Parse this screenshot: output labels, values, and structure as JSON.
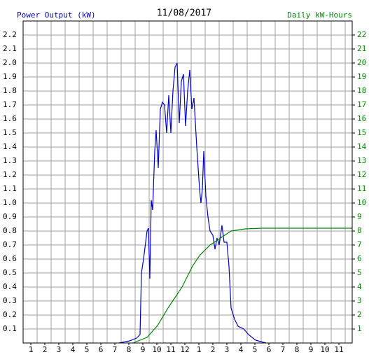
{
  "chart_data": {
    "type": "line",
    "title": "11/08/2017",
    "y_label": "Power Output (kW)",
    "y2_label": "Daily kW-Hours",
    "xlim": [
      0.45,
      23.95
    ],
    "xticks": [
      {
        "value": 1,
        "label": "1"
      },
      {
        "value": 2,
        "label": "2"
      },
      {
        "value": 3,
        "label": "3"
      },
      {
        "value": 4,
        "label": "4"
      },
      {
        "value": 5,
        "label": "5"
      },
      {
        "value": 6,
        "label": "6"
      },
      {
        "value": 7,
        "label": "7"
      },
      {
        "value": 8,
        "label": "8"
      },
      {
        "value": 9,
        "label": "9"
      },
      {
        "value": 10,
        "label": "10"
      },
      {
        "value": 11,
        "label": "11"
      },
      {
        "value": 12,
        "label": "12"
      },
      {
        "value": 13,
        "label": "1"
      },
      {
        "value": 14,
        "label": "2"
      },
      {
        "value": 15,
        "label": "3"
      },
      {
        "value": 16,
        "label": "4"
      },
      {
        "value": 17,
        "label": "5"
      },
      {
        "value": 18,
        "label": "6"
      },
      {
        "value": 19,
        "label": "7"
      },
      {
        "value": 20,
        "label": "8"
      },
      {
        "value": 21,
        "label": "9"
      },
      {
        "value": 22,
        "label": "10"
      },
      {
        "value": 23,
        "label": "11"
      }
    ],
    "ylim": [
      0,
      2.3
    ],
    "yticks": [
      0.1,
      0.2,
      0.3,
      0.4,
      0.5,
      0.6,
      0.7,
      0.8,
      0.9,
      {
        "value": 1,
        "label": "1.0"
      },
      1.1,
      1.2,
      1.3,
      1.4,
      1.5,
      1.6,
      1.7,
      1.8,
      1.9,
      {
        "value": 2,
        "label": "2.0"
      },
      2.1,
      2.2
    ],
    "y2lim": [
      0,
      23
    ],
    "y2ticks": [
      1,
      2,
      3,
      4,
      5,
      6,
      7,
      8,
      9,
      10,
      11,
      12,
      13,
      14,
      15,
      16,
      17,
      18,
      19,
      20,
      21,
      22
    ],
    "grid": true,
    "series": [
      {
        "color": "#0000cc",
        "x": [
          7.3,
          8.05,
          8.55,
          8.8,
          8.9,
          9.05,
          9.3,
          9.4,
          9.5,
          9.6,
          9.7,
          9.85,
          9.95,
          10.1,
          10.25,
          10.4,
          10.55,
          10.7,
          10.85,
          11.0,
          11.15,
          11.3,
          11.45,
          11.6,
          11.75,
          11.9,
          12.05,
          12.2,
          12.35,
          12.5,
          12.65,
          12.85,
          13.05,
          13.15,
          13.25,
          13.35,
          13.5,
          13.65,
          13.8,
          14.0,
          14.15,
          14.3,
          14.45,
          14.65,
          14.8,
          15.0,
          15.15,
          15.3,
          15.55,
          15.8,
          16.2,
          16.55,
          17.05,
          17.8
        ],
        "values": [
          0,
          0.015,
          0.035,
          0.06,
          0.5,
          0.6,
          0.8,
          0.82,
          0.46,
          1.02,
          0.95,
          1.37,
          1.52,
          1.25,
          1.67,
          1.72,
          1.7,
          1.5,
          1.77,
          1.5,
          1.8,
          1.97,
          2.0,
          1.57,
          1.87,
          1.92,
          1.55,
          1.8,
          1.95,
          1.67,
          1.75,
          1.4,
          1.1,
          1.0,
          1.1,
          1.37,
          1.05,
          0.9,
          0.8,
          0.77,
          0.67,
          0.75,
          0.7,
          0.84,
          0.72,
          0.72,
          0.55,
          0.25,
          0.17,
          0.12,
          0.1,
          0.06,
          0.02,
          0
        ]
      },
      {
        "color": "#008800",
        "axis": "y2",
        "x": [
          8.3,
          9.3,
          10.05,
          10.8,
          11.8,
          12.55,
          13.05,
          13.8,
          14.55,
          15.3,
          16.3,
          17.55,
          23.95
        ],
        "values": [
          0,
          0.4,
          1.25,
          2.5,
          4.0,
          5.5,
          6.25,
          7.0,
          7.5,
          8.0,
          8.15,
          8.2,
          8.2
        ]
      }
    ]
  }
}
